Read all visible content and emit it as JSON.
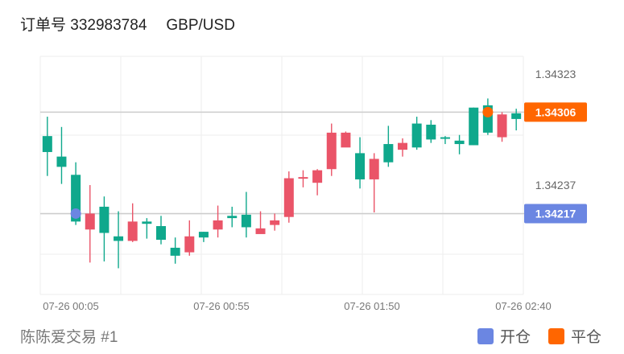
{
  "header": {
    "order_label": "订单号 332983784",
    "pair": "GBP/USD"
  },
  "footer": {
    "source": "陈陈爱交易 #1"
  },
  "legend": [
    {
      "label": "开仓",
      "color": "#6b86e2"
    },
    {
      "label": "平仓",
      "color": "#ff6600"
    }
  ],
  "colors": {
    "up": "#0fa88c",
    "down": "#ea5468",
    "open_marker": "#6b86e2",
    "close_marker": "#ff6600",
    "grid": "#eeeeee",
    "ref_line": "#cccccc"
  },
  "chart_data": {
    "type": "candlestick",
    "x_ticks": [
      "07-26 00:05",
      "07-26 00:55",
      "07-26 01:50",
      "07-26 02:40"
    ],
    "y_ticks": [
      "1.34323",
      "1.34237"
    ],
    "y_range": [
      1.34146,
      1.34355
    ],
    "open_price": {
      "label": "1.34217",
      "value": 1.34217,
      "candle_index": 2
    },
    "close_price": {
      "label": "1.34306",
      "value": 1.34306,
      "candle_index": 31
    },
    "candles": [
      {
        "o": 1.34271,
        "h": 1.34302,
        "l": 1.3425,
        "c": 1.34285
      },
      {
        "o": 1.34258,
        "h": 1.34293,
        "l": 1.34243,
        "c": 1.34267
      },
      {
        "o": 1.3421,
        "h": 1.34262,
        "l": 1.34207,
        "c": 1.34251
      },
      {
        "o": 1.34217,
        "h": 1.34242,
        "l": 1.34174,
        "c": 1.34203
      },
      {
        "o": 1.342,
        "h": 1.34232,
        "l": 1.34175,
        "c": 1.34223
      },
      {
        "o": 1.34193,
        "h": 1.34219,
        "l": 1.34169,
        "c": 1.34197
      },
      {
        "o": 1.3421,
        "h": 1.34226,
        "l": 1.34192,
        "c": 1.34193
      },
      {
        "o": 1.34208,
        "h": 1.34213,
        "l": 1.34195,
        "c": 1.3421
      },
      {
        "o": 1.34194,
        "h": 1.34215,
        "l": 1.3419,
        "c": 1.34206
      },
      {
        "o": 1.3418,
        "h": 1.34196,
        "l": 1.34173,
        "c": 1.34187
      },
      {
        "o": 1.34197,
        "h": 1.34211,
        "l": 1.3418,
        "c": 1.34183
      },
      {
        "o": 1.34196,
        "h": 1.34201,
        "l": 1.34192,
        "c": 1.34201
      },
      {
        "o": 1.34211,
        "h": 1.34224,
        "l": 1.34196,
        "c": 1.34203
      },
      {
        "o": 1.34213,
        "h": 1.34223,
        "l": 1.34205,
        "c": 1.34215
      },
      {
        "o": 1.34205,
        "h": 1.34236,
        "l": 1.34196,
        "c": 1.34216
      },
      {
        "o": 1.34204,
        "h": 1.34219,
        "l": 1.342,
        "c": 1.34199
      },
      {
        "o": 1.34211,
        "h": 1.34217,
        "l": 1.34202,
        "c": 1.34207
      },
      {
        "o": 1.34248,
        "h": 1.34254,
        "l": 1.34209,
        "c": 1.34214
      },
      {
        "o": 1.34249,
        "h": 1.34255,
        "l": 1.3424,
        "c": 1.34248
      },
      {
        "o": 1.34255,
        "h": 1.34256,
        "l": 1.34233,
        "c": 1.34244
      },
      {
        "o": 1.34288,
        "h": 1.34296,
        "l": 1.3425,
        "c": 1.34256
      },
      {
        "o": 1.34288,
        "h": 1.34289,
        "l": 1.34277,
        "c": 1.34275
      },
      {
        "o": 1.34247,
        "h": 1.34284,
        "l": 1.34239,
        "c": 1.3427
      },
      {
        "o": 1.34265,
        "h": 1.3427,
        "l": 1.34218,
        "c": 1.34247
      },
      {
        "o": 1.34262,
        "h": 1.34294,
        "l": 1.34258,
        "c": 1.34278
      },
      {
        "o": 1.34279,
        "h": 1.34283,
        "l": 1.34267,
        "c": 1.34273
      },
      {
        "o": 1.34275,
        "h": 1.34302,
        "l": 1.34273,
        "c": 1.34296
      },
      {
        "o": 1.34282,
        "h": 1.34299,
        "l": 1.34279,
        "c": 1.34295
      },
      {
        "o": 1.34283,
        "h": 1.34285,
        "l": 1.34278,
        "c": 1.34284
      },
      {
        "o": 1.34278,
        "h": 1.34286,
        "l": 1.34269,
        "c": 1.34281
      },
      {
        "o": 1.34277,
        "h": 1.3431,
        "l": 1.34277,
        "c": 1.3431
      },
      {
        "o": 1.34288,
        "h": 1.34318,
        "l": 1.34286,
        "c": 1.34312
      },
      {
        "o": 1.34304,
        "h": 1.34306,
        "l": 1.3428,
        "c": 1.34284
      },
      {
        "o": 1.343,
        "h": 1.34309,
        "l": 1.3429,
        "c": 1.34305
      }
    ]
  }
}
